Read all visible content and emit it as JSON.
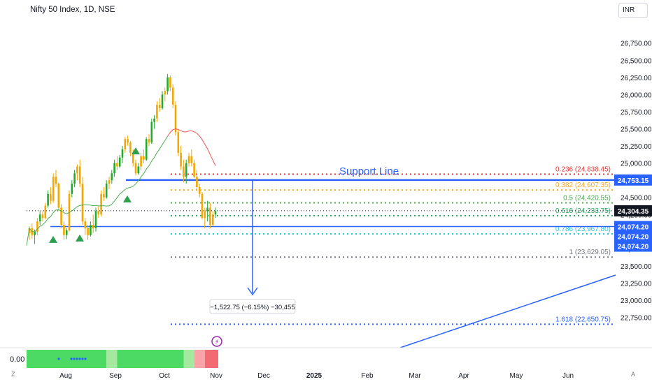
{
  "header": {
    "title": "Nifty 50 Index, 1D, NSE",
    "currency": "INR"
  },
  "indicator": {
    "value_label": "0.00"
  },
  "footer": {
    "zoom_label": "Z",
    "auto_label": "A"
  },
  "colors": {
    "up": "#f7a600",
    "up_alt": "#22ab2c",
    "down": "#f7a600",
    "support": "#2962ff",
    "ema_green": "#4caf50",
    "ema_red": "#ef5350",
    "fib_0236": "#e53935",
    "fib_0382": "#f9a825",
    "fib_05": "#4caf50",
    "fib_0618": "#26a65b",
    "fib_0786": "#26c6da",
    "fib_1": "#787b86",
    "fib_1618": "#2962ff"
  },
  "chart_data": {
    "type": "candlestick",
    "title": "Nifty 50 Index, 1D, NSE",
    "x_ticks": [
      "Aug",
      "Sep",
      "Oct",
      "Nov",
      "Dec",
      "2025",
      "Feb",
      "Mar",
      "Apr",
      "May",
      "Jun"
    ],
    "y_ticks": [
      "22,750.00",
      "23,000.00",
      "23,250.00",
      "23,500.00",
      "23,750.00",
      "24,000.00",
      "24,250.00",
      "24,500.00",
      "24,750.00",
      "25,000.00",
      "25,250.00",
      "25,500.00",
      "25,750.00",
      "26,000.00",
      "26,250.00",
      "26,500.00",
      "26,750.00"
    ],
    "ylim": [
      22420,
      26920
    ],
    "price_labels": [
      {
        "text": "24,753.15",
        "value": 24753.15,
        "kind": "support"
      },
      {
        "text": "24,304.35",
        "value": 24304.35,
        "kind": "last"
      },
      {
        "text": "24,074.20",
        "value": 24074.2,
        "kind": "support"
      },
      {
        "text": "24,074.20",
        "value": 24074.2,
        "kind": "stack"
      },
      {
        "text": "24,074.20",
        "value": 24074.2,
        "kind": "stack"
      }
    ],
    "fib_levels": [
      {
        "label": "0.236 (24,838.45)",
        "value": 24838.45,
        "color": "#e53935"
      },
      {
        "label": "0.382 (24,607.35)",
        "value": 24607.35,
        "color": "#f9a825"
      },
      {
        "label": "0.5 (24,420.55)",
        "value": 24420.55,
        "color": "#4caf50"
      },
      {
        "label": "0.618 (24,233.75)",
        "value": 24233.75,
        "color": "#26a65b"
      },
      {
        "label": "0.786 (23,967.80)",
        "value": 23967.8,
        "color": "#26c6da"
      },
      {
        "label": "1 (23,629.05)",
        "value": 23629.05,
        "color": "#787b86"
      },
      {
        "label": "1.618 (22,650.75)",
        "value": 22650.75,
        "color": "#2962ff"
      }
    ],
    "annotations": {
      "support_label": "Support Line",
      "support_value": 24753.15,
      "lower_support_value": 24074.2,
      "measure_label": "−1,522.75 (−6.15%) −30,455"
    },
    "candles": [
      [
        23980,
        24080,
        23880,
        24050
      ],
      [
        24050,
        24120,
        23900,
        23950
      ],
      [
        23950,
        24030,
        23820,
        24000
      ],
      [
        24000,
        24200,
        23950,
        24150
      ],
      [
        24150,
        24300,
        24100,
        24250
      ],
      [
        24250,
        24300,
        24150,
        24200
      ],
      [
        24200,
        24420,
        24180,
        24380
      ],
      [
        24380,
        24600,
        24350,
        24550
      ],
      [
        24550,
        24650,
        24400,
        24450
      ],
      [
        24450,
        24850,
        24420,
        24800
      ],
      [
        24800,
        24900,
        24650,
        24700
      ],
      [
        24700,
        24720,
        24300,
        24350
      ],
      [
        24350,
        24400,
        24050,
        24100
      ],
      [
        24100,
        24150,
        23880,
        23950
      ],
      [
        23950,
        24050,
        23890,
        24020
      ],
      [
        24020,
        24600,
        24000,
        24550
      ],
      [
        24550,
        24750,
        24500,
        24700
      ],
      [
        24700,
        24900,
        24650,
        24850
      ],
      [
        24850,
        24980,
        24750,
        24950
      ],
      [
        24950,
        25050,
        24650,
        24700
      ],
      [
        24700,
        24800,
        24100,
        24150
      ],
      [
        24150,
        24200,
        23950,
        24050
      ],
      [
        24050,
        24100,
        23880,
        23950
      ],
      [
        23950,
        24150,
        23930,
        24100
      ],
      [
        24100,
        24250,
        23980,
        24050
      ],
      [
        24050,
        24350,
        24000,
        24300
      ],
      [
        24300,
        24380,
        24200,
        24250
      ],
      [
        24250,
        24600,
        24220,
        24550
      ],
      [
        24550,
        24650,
        24450,
        24500
      ],
      [
        24500,
        24750,
        24480,
        24700
      ],
      [
        24700,
        24800,
        24620,
        24750
      ],
      [
        24750,
        24900,
        24700,
        24850
      ],
      [
        24850,
        25050,
        24800,
        25000
      ],
      [
        25000,
        25100,
        24900,
        24950
      ],
      [
        24950,
        25120,
        24930,
        25080
      ],
      [
        25080,
        25250,
        25000,
        25200
      ],
      [
        25200,
        25380,
        25150,
        25350
      ],
      [
        25350,
        25400,
        25250,
        25300
      ],
      [
        25300,
        25320,
        25100,
        25150
      ],
      [
        25150,
        25200,
        24950,
        25000
      ],
      [
        25000,
        25050,
        24820,
        24850
      ],
      [
        24850,
        25000,
        24830,
        24950
      ],
      [
        24950,
        25150,
        24900,
        25100
      ],
      [
        25100,
        25200,
        25000,
        25050
      ],
      [
        25050,
        25380,
        25030,
        25350
      ],
      [
        25350,
        25420,
        25250,
        25300
      ],
      [
        25300,
        25650,
        25280,
        25600
      ],
      [
        25600,
        25700,
        25500,
        25650
      ],
      [
        25650,
        25900,
        25600,
        25850
      ],
      [
        25850,
        25950,
        25750,
        25800
      ],
      [
        25800,
        26050,
        25780,
        26000
      ],
      [
        26000,
        26100,
        25900,
        26050
      ],
      [
        26050,
        26300,
        26000,
        26250
      ],
      [
        26250,
        26277,
        26050,
        26100
      ],
      [
        26100,
        26150,
        25800,
        25850
      ],
      [
        25850,
        25900,
        25400,
        25450
      ],
      [
        25450,
        25500,
        25100,
        25150
      ],
      [
        25150,
        25250,
        24900,
        24950
      ],
      [
        24950,
        25050,
        24720,
        24800
      ],
      [
        24800,
        25050,
        24700,
        25000
      ],
      [
        25000,
        25150,
        24950,
        25100
      ],
      [
        25100,
        25200,
        24950,
        25000
      ],
      [
        25000,
        25050,
        24780,
        24800
      ],
      [
        24800,
        24900,
        24600,
        24650
      ],
      [
        24650,
        24700,
        24500,
        24550
      ],
      [
        24550,
        24580,
        24180,
        24200
      ],
      [
        24200,
        24350,
        24050,
        24300
      ],
      [
        24300,
        24450,
        24150,
        24350
      ],
      [
        24350,
        24420,
        24050,
        24100
      ],
      [
        24100,
        24300,
        24080,
        24250
      ],
      [
        24250,
        24350,
        24200,
        24300
      ]
    ],
    "bottom_indicator": {
      "type": "heat_strip",
      "segments": [
        {
          "start": 0,
          "end": 30,
          "color": "#4cd964"
        },
        {
          "start": 30,
          "end": 34,
          "color": "#a5e8a0"
        },
        {
          "start": 34,
          "end": 36,
          "color": "#4cd964"
        },
        {
          "start": 36,
          "end": 59,
          "color": "#4cd964"
        },
        {
          "start": 59,
          "end": 63,
          "color": "#a5e8a0"
        },
        {
          "start": 63,
          "end": 67,
          "color": "#f7a3a8"
        },
        {
          "start": 67,
          "end": 72,
          "color": "#f26b72"
        }
      ]
    }
  }
}
